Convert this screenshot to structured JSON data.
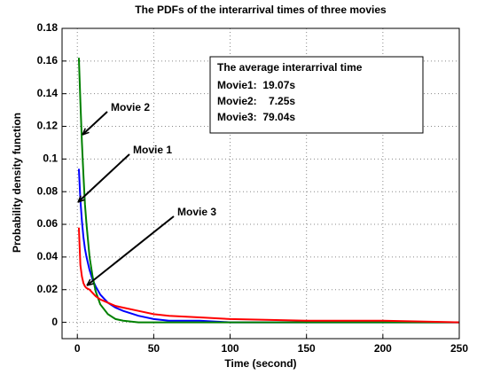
{
  "chart_data": {
    "type": "line",
    "title": "The PDFs of the interarrival times of three movies",
    "xlabel": "Time (second)",
    "ylabel": "Probability density function",
    "x": [
      1,
      2,
      3,
      4,
      5,
      6,
      8,
      10,
      12,
      15,
      20,
      25,
      30,
      40,
      50,
      60,
      80,
      100,
      150,
      200,
      250
    ],
    "series": [
      {
        "name": "Movie 1",
        "color": "#0000ff",
        "values": [
          0.094,
          0.075,
          0.062,
          0.052,
          0.045,
          0.04,
          0.032,
          0.026,
          0.022,
          0.017,
          0.012,
          0.009,
          0.007,
          0.004,
          0.002,
          0.001,
          0.001,
          0,
          0,
          0,
          0
        ]
      },
      {
        "name": "Movie 2",
        "color": "#008000",
        "values": [
          0.162,
          0.135,
          0.11,
          0.09,
          0.072,
          0.06,
          0.04,
          0.028,
          0.019,
          0.011,
          0.005,
          0.002,
          0.001,
          0,
          0,
          0,
          0,
          0,
          0,
          0,
          0
        ]
      },
      {
        "name": "Movie 3",
        "color": "#ff0000",
        "values": [
          0.058,
          0.035,
          0.028,
          0.024,
          0.022,
          0.021,
          0.02,
          0.018,
          0.016,
          0.014,
          0.012,
          0.01,
          0.009,
          0.007,
          0.005,
          0.004,
          0.003,
          0.002,
          0.001,
          0.001,
          0
        ]
      }
    ],
    "xlim": [
      -10,
      250
    ],
    "xticks": [
      0,
      50,
      100,
      150,
      200,
      250
    ],
    "ylim": [
      -0.01,
      0.18
    ],
    "yticks": [
      0,
      0.02,
      0.04,
      0.06,
      0.08,
      0.1,
      0.12,
      0.14,
      0.16,
      0.18
    ],
    "grid": true,
    "text_box": {
      "title": "The average interarrival time",
      "lines": [
        "Movie1:  19.07s",
        "Movie2:    7.25s",
        "Movie3:  79.04s"
      ]
    }
  }
}
